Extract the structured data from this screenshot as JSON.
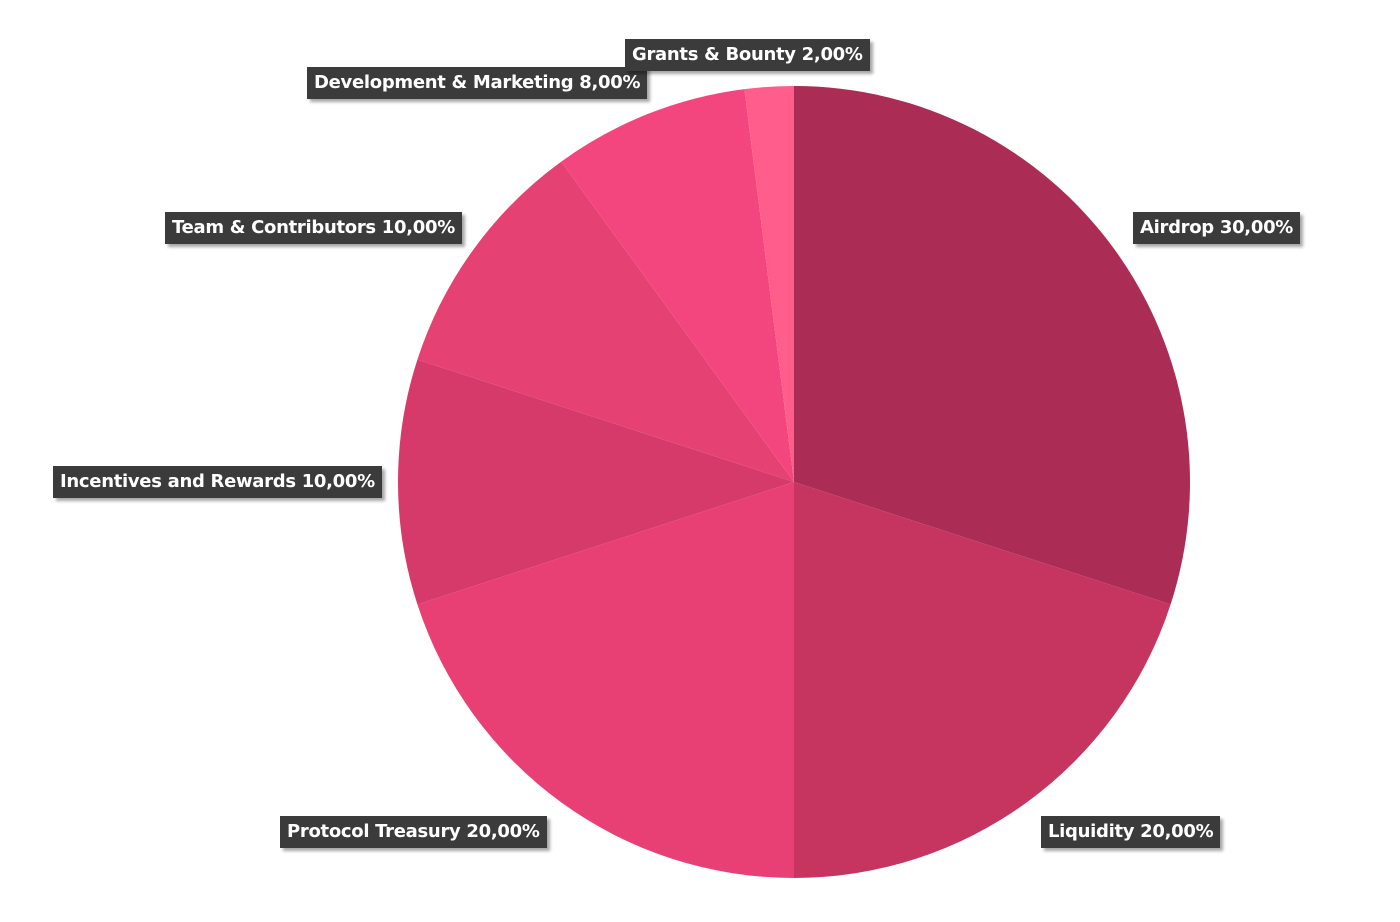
{
  "chart_data": {
    "type": "pie",
    "start_angle": "12 o'clock",
    "direction": "clockwise",
    "slices": [
      {
        "label": "Airdrop 30,00%",
        "value": 30,
        "color": "#AB2D55"
      },
      {
        "label": "Liquidity 20,00%",
        "value": 20,
        "color": "#C63560"
      },
      {
        "label": "Protocol Treasury 20,00%",
        "value": 20,
        "color": "#E84075"
      },
      {
        "label": "Incentives and Rewards 10,00%",
        "value": 10,
        "color": "#D63A6A"
      },
      {
        "label": "Team & Contributors 10,00%",
        "value": 10,
        "color": "#E54173"
      },
      {
        "label": "Development & Marketing 8,00%",
        "value": 8,
        "color": "#F4467E"
      },
      {
        "label": "Grants & Bounty 2,00%",
        "value": 2,
        "color": "#FF5E8C"
      }
    ]
  }
}
